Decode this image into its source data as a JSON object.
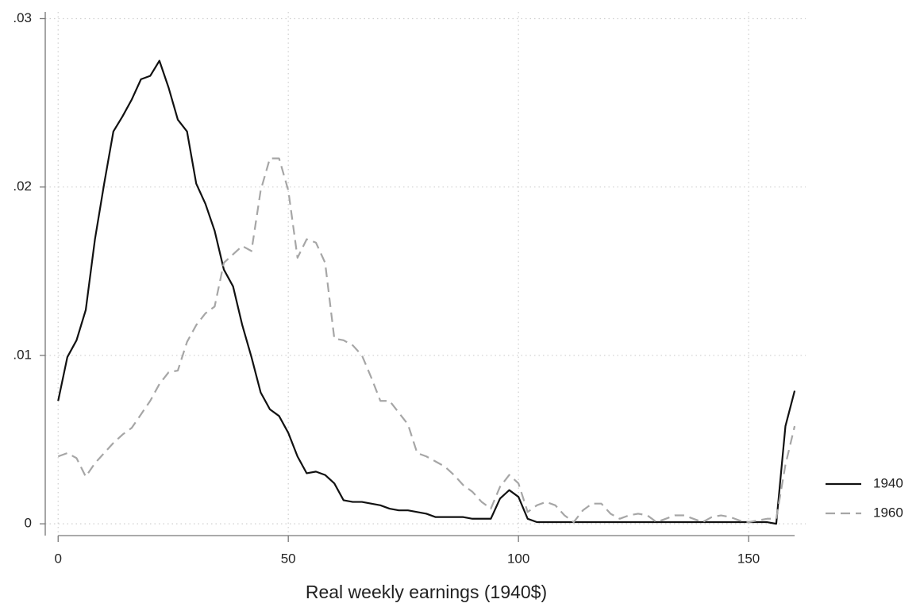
{
  "chart_data": {
    "type": "line",
    "x_label": "Real weekly earnings (1940$)",
    "x": [
      0,
      2,
      4,
      6,
      8,
      10,
      12,
      14,
      16,
      18,
      20,
      22,
      24,
      26,
      28,
      30,
      32,
      34,
      36,
      38,
      40,
      42,
      44,
      46,
      48,
      50,
      52,
      54,
      56,
      58,
      60,
      62,
      64,
      66,
      68,
      70,
      72,
      74,
      76,
      78,
      80,
      82,
      84,
      86,
      88,
      90,
      92,
      94,
      96,
      98,
      100,
      102,
      104,
      106,
      108,
      110,
      112,
      114,
      116,
      118,
      120,
      122,
      124,
      126,
      128,
      130,
      132,
      134,
      136,
      138,
      140,
      142,
      144,
      146,
      148,
      150,
      152,
      154,
      156,
      158,
      160
    ],
    "series": [
      {
        "name": "1940",
        "color": "#111111",
        "line_style": "solid",
        "values": [
          0.0073,
          0.0099,
          0.0109,
          0.0127,
          0.0169,
          0.0202,
          0.0233,
          0.0242,
          0.0252,
          0.0264,
          0.0266,
          0.0275,
          0.0259,
          0.024,
          0.0233,
          0.0202,
          0.019,
          0.0174,
          0.0151,
          0.0141,
          0.0118,
          0.0099,
          0.0078,
          0.0068,
          0.0064,
          0.0054,
          0.004,
          0.003,
          0.0031,
          0.0029,
          0.0024,
          0.0014,
          0.0013,
          0.0013,
          0.0012,
          0.0011,
          0.0009,
          0.0008,
          0.0008,
          0.0007,
          0.0006,
          0.0004,
          0.0004,
          0.0004,
          0.0004,
          0.0003,
          0.0003,
          0.0003,
          0.0015,
          0.002,
          0.0016,
          0.0003,
          0.0001,
          0.0001,
          0.0001,
          0.0001,
          0.0001,
          0.0001,
          0.0001,
          0.0001,
          0.0001,
          0.0001,
          0.0001,
          0.0001,
          0.0001,
          0.0001,
          0.0001,
          0.0001,
          0.0001,
          0.0001,
          0.0001,
          0.0001,
          0.0001,
          0.0001,
          0.0001,
          0.0001,
          0.0001,
          0.0001,
          0,
          0.0058,
          0.0079
        ]
      },
      {
        "name": "1960",
        "color": "#a6a6a6",
        "line_style": "dashed",
        "values": [
          0.004,
          0.0042,
          0.0039,
          0.0028,
          0.0036,
          0.0042,
          0.0048,
          0.0053,
          0.0057,
          0.0065,
          0.0073,
          0.0083,
          0.009,
          0.0091,
          0.0108,
          0.0118,
          0.0125,
          0.0129,
          0.0155,
          0.016,
          0.0165,
          0.0162,
          0.0198,
          0.0217,
          0.0217,
          0.0198,
          0.0158,
          0.0169,
          0.0167,
          0.0155,
          0.011,
          0.0109,
          0.0106,
          0.01,
          0.0087,
          0.0073,
          0.0073,
          0.0066,
          0.0059,
          0.0042,
          0.004,
          0.0037,
          0.0034,
          0.0029,
          0.0023,
          0.0019,
          0.0013,
          0.0009,
          0.0022,
          0.0029,
          0.0024,
          0.0007,
          0.0011,
          0.0013,
          0.0011,
          0.0005,
          0.0001,
          0.0008,
          0.0012,
          0.0012,
          0.0006,
          0.0003,
          0.0005,
          0.0006,
          0.0005,
          0.0001,
          0.0003,
          0.0005,
          0.0005,
          0.0003,
          0.0001,
          0.0004,
          0.0005,
          0.0004,
          0.0002,
          0.0001,
          0.0002,
          0.0003,
          0.0003,
          0.0035,
          0.0058
        ]
      }
    ],
    "xlim": [
      -2.8,
      162.4
    ],
    "xticks": [
      0,
      50,
      100,
      150
    ],
    "ylim": [
      -0.0007,
      0.0304
    ],
    "yticks": [
      0,
      {
        "value": 0.01,
        "label": ".01"
      },
      {
        "value": 0.02,
        "label": ".02"
      },
      {
        "value": 0.03,
        "label": ".03"
      }
    ],
    "grid": true,
    "legend": "right"
  }
}
